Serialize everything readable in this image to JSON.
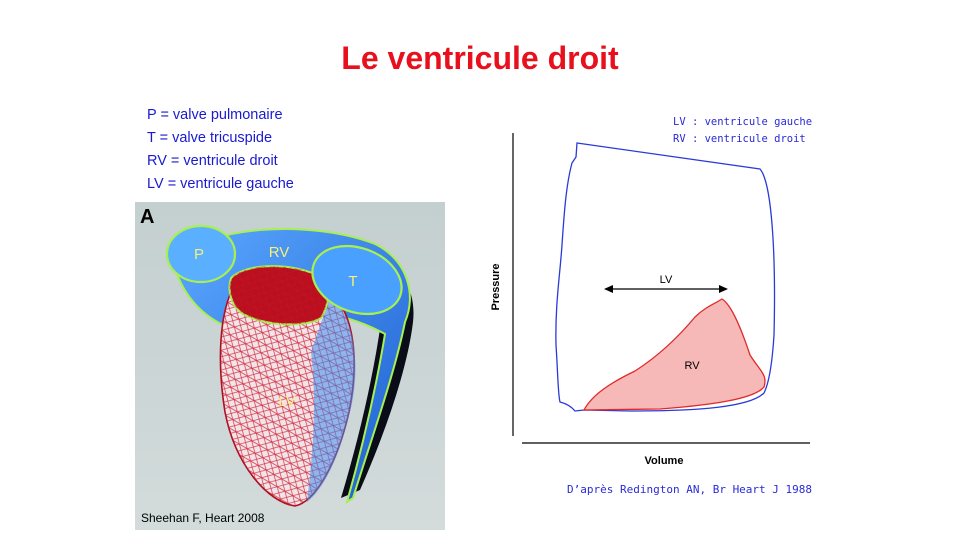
{
  "slide": {
    "title": "Le ventricule  droit",
    "legend": [
      "P = valve pulmonaire",
      "T = valve tricuspide",
      "RV = ventricule  droit",
      "LV = ventricule  gauche"
    ]
  },
  "heart_figure": {
    "panel_letter": "A",
    "labels": {
      "p": "P",
      "rv": "RV",
      "t": "T",
      "lv": "LV"
    },
    "credit": "Sheehan F, Heart 2008",
    "colors": {
      "rv_surface": "#3a8ef0",
      "lv_mesh": "#cc1122",
      "valve_outline": "#a8f050",
      "label": "#f5f07a"
    }
  },
  "pv_chart": {
    "axis_x_label": "Volume",
    "axis_y_label": "Pressure",
    "loop_labels": {
      "lv": "LV",
      "rv": "RV"
    },
    "legend": [
      "LV : ventricule gauche",
      "RV : ventricule droit"
    ],
    "source": "D’après Redington AN, Br Heart J 1988",
    "colors": {
      "lv_loop": "#2a3ad8",
      "rv_loop": "#e02a2a",
      "rv_fill": "#f7b8b8"
    }
  }
}
